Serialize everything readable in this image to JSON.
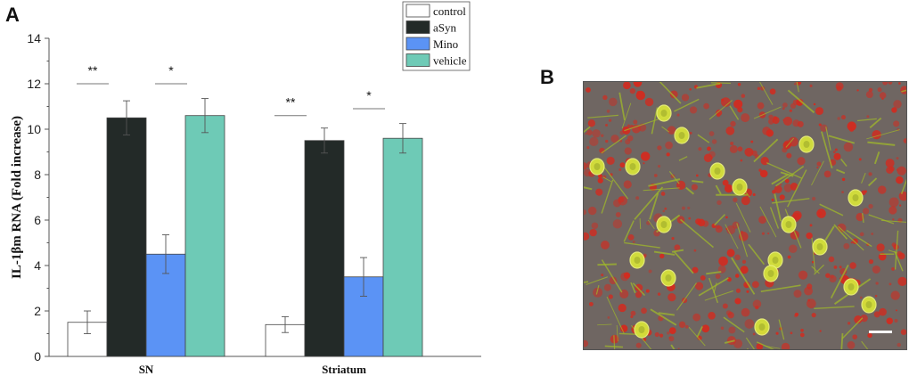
{
  "panels": {
    "a_label": "A",
    "b_label": "B"
  },
  "chart_data": {
    "type": "bar",
    "title": "",
    "xlabel": "",
    "ylabel": "IL-1βm RNA (Fold increase)",
    "ylim": [
      0,
      14
    ],
    "yticks": [
      0,
      2,
      4,
      6,
      8,
      10,
      12,
      14
    ],
    "categories": [
      "SN",
      "Striatum"
    ],
    "series": [
      {
        "name": "control",
        "color": "#ffffff",
        "values": [
          1.5,
          1.4
        ],
        "errors": [
          0.5,
          0.35
        ]
      },
      {
        "name": "aSyn",
        "color": "#232a28",
        "values": [
          10.5,
          9.5
        ],
        "errors": [
          0.75,
          0.55
        ]
      },
      {
        "name": "Mino",
        "color": "#5b93f5",
        "values": [
          4.5,
          3.5
        ],
        "errors": [
          0.85,
          0.85
        ]
      },
      {
        "name": "vehicle",
        "color": "#6ecab6",
        "values": [
          10.6,
          9.6
        ],
        "errors": [
          0.75,
          0.65
        ]
      }
    ],
    "legend_position": "top-right",
    "annotations": [
      {
        "text": "**",
        "group": 0,
        "from": 0,
        "to": 1,
        "level": 12.0
      },
      {
        "text": "*",
        "group": 0,
        "from": 2,
        "to": 3,
        "level": 12.0
      },
      {
        "text": "**",
        "group": 1,
        "from": 0,
        "to": 1,
        "level": 10.6
      },
      {
        "text": "*",
        "group": 1,
        "from": 2,
        "to": 3,
        "level": 10.9
      }
    ]
  },
  "micrograph": {
    "icon": "fluorescence-micrograph-image",
    "background_color": "#6f6662",
    "red_color": "#d42a1e",
    "yellow_color": "#d6e23a",
    "scale_bar_color": "#ffffff"
  }
}
